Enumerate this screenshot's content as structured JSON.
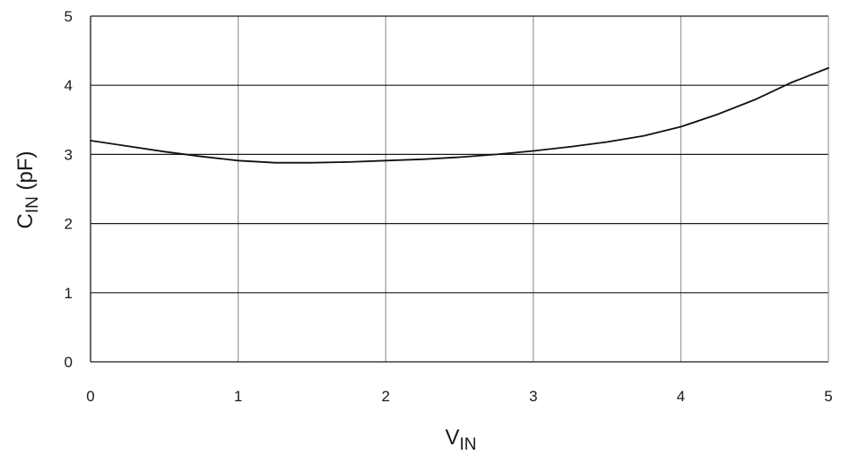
{
  "chart_data": {
    "type": "line",
    "title": "",
    "xlabel": {
      "main": "V",
      "sub": "IN",
      "suffix": ""
    },
    "ylabel": {
      "main": "C",
      "sub": "IN",
      "suffix": " (pF)"
    },
    "xlim": [
      0,
      5
    ],
    "ylim": [
      0,
      5
    ],
    "xticks": [
      "0",
      "1",
      "2",
      "3",
      "4",
      "5"
    ],
    "yticks": [
      "0",
      "1",
      "2",
      "3",
      "4",
      "5"
    ],
    "grid": true,
    "series": [
      {
        "color": "#111111",
        "points": [
          [
            0,
            3.2
          ],
          [
            0.25,
            3.12
          ],
          [
            0.5,
            3.04
          ],
          [
            0.75,
            2.97
          ],
          [
            1.0,
            2.91
          ],
          [
            1.25,
            2.88
          ],
          [
            1.5,
            2.88
          ],
          [
            1.75,
            2.89
          ],
          [
            2.0,
            2.91
          ],
          [
            2.25,
            2.93
          ],
          [
            2.5,
            2.96
          ],
          [
            2.75,
            3.0
          ],
          [
            3.0,
            3.05
          ],
          [
            3.25,
            3.11
          ],
          [
            3.5,
            3.18
          ],
          [
            3.75,
            3.27
          ],
          [
            4.0,
            3.4
          ],
          [
            4.25,
            3.58
          ],
          [
            4.5,
            3.79
          ],
          [
            4.75,
            4.04
          ],
          [
            5.0,
            4.25
          ]
        ]
      }
    ],
    "colors": {
      "grid_horizontal": "#1a1a1a",
      "grid_vertical": "#9a9a9a",
      "axis": "#1a1a1a"
    }
  }
}
